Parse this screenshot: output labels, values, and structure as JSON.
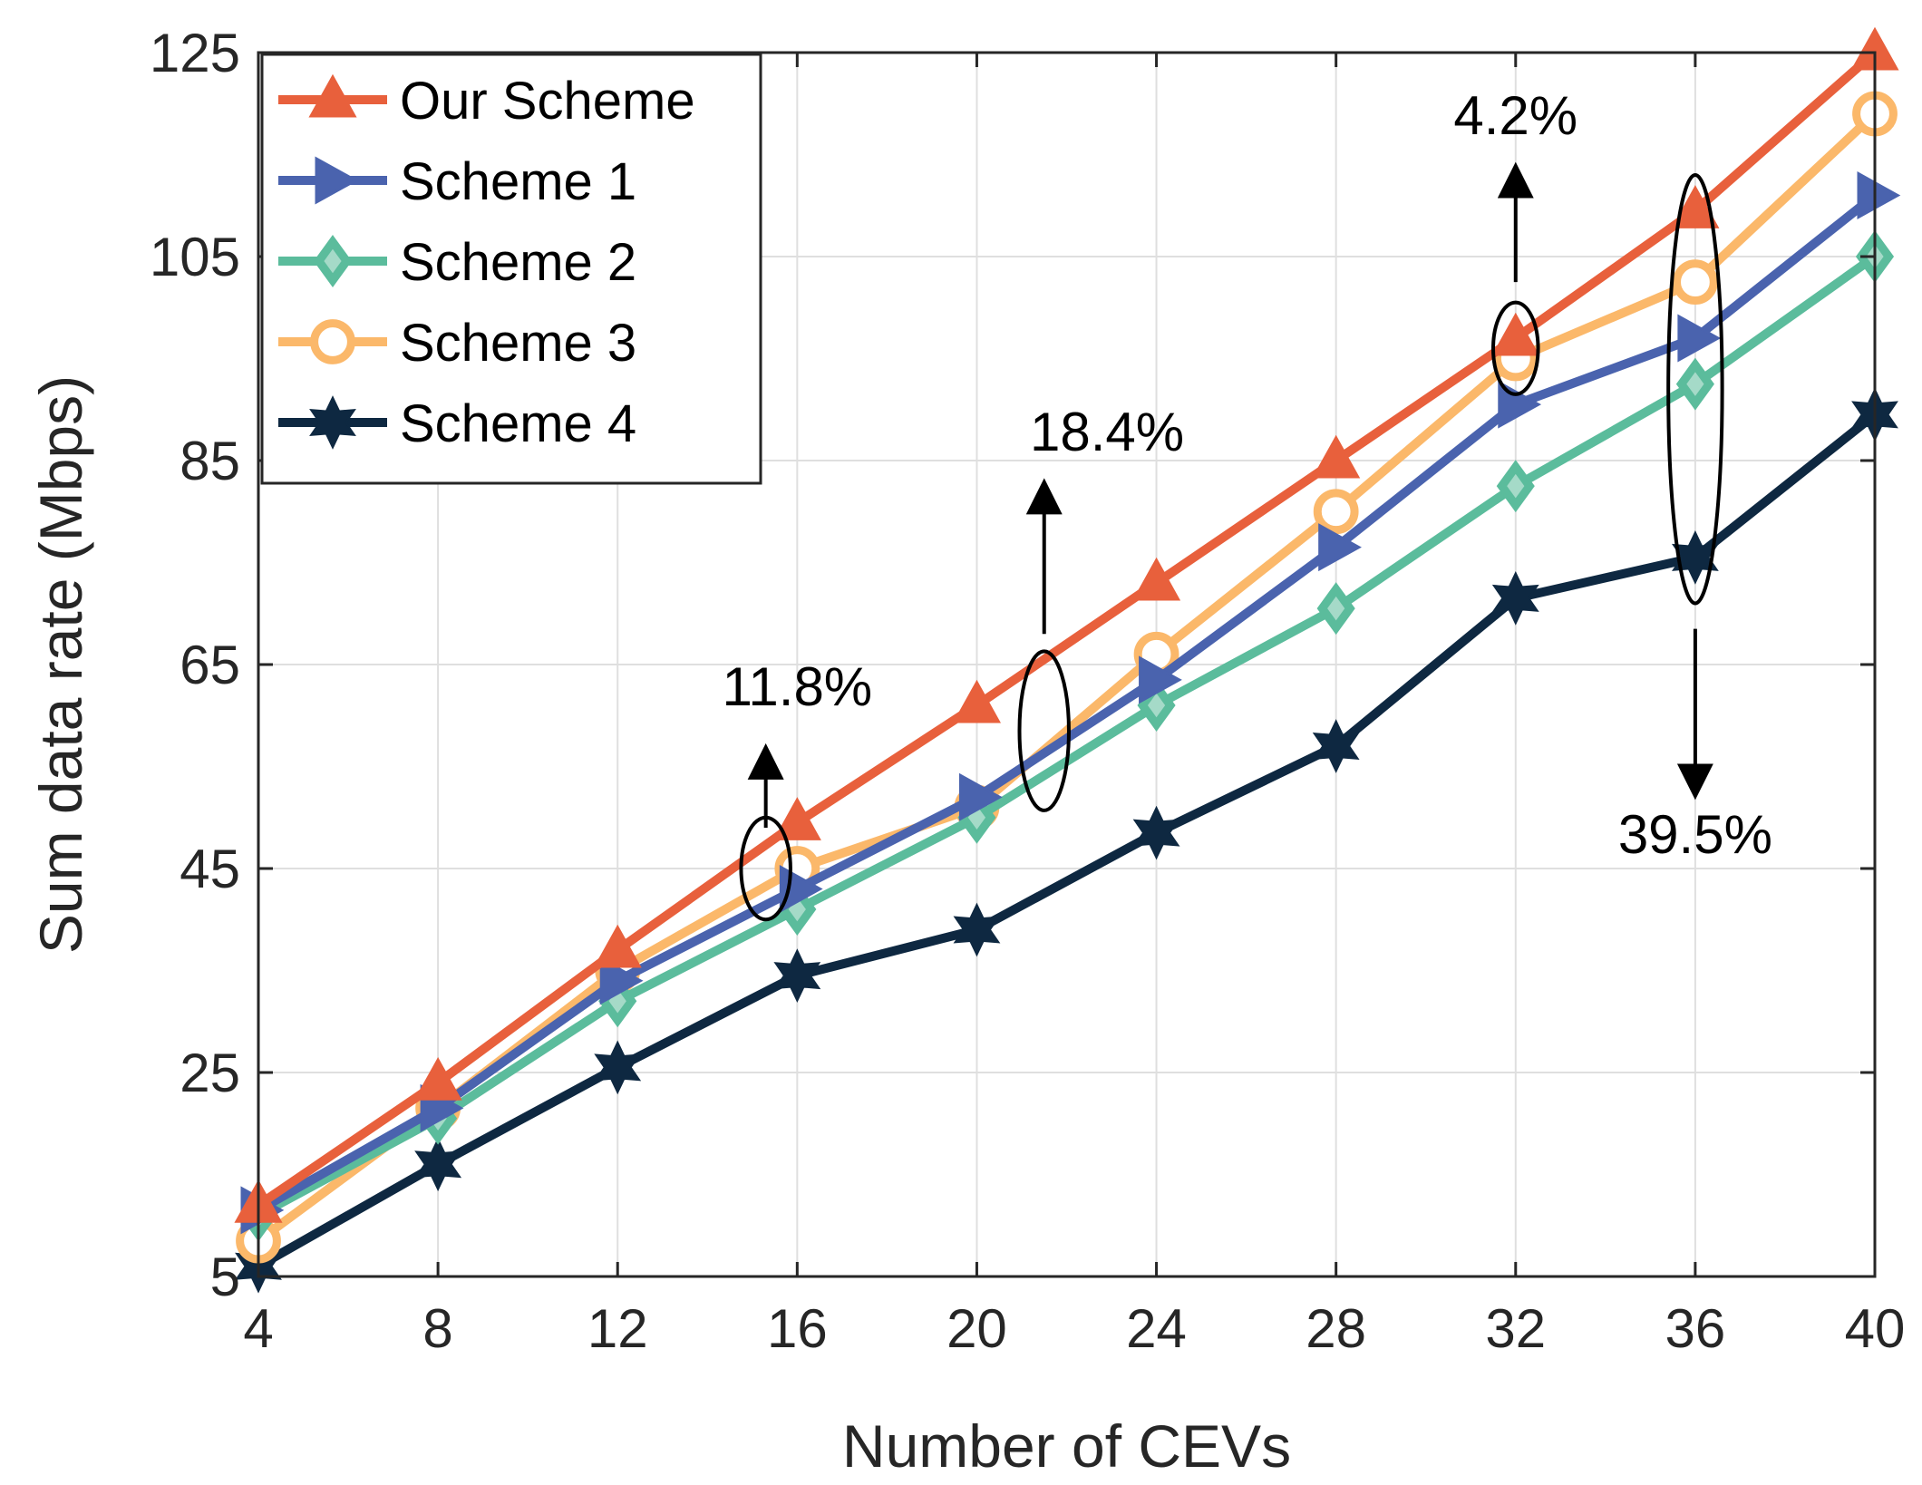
{
  "chart_data": {
    "type": "line",
    "title": "",
    "xlabel": "Number of CEVs",
    "ylabel": "Sum data rate (Mbps)",
    "x": [
      4,
      8,
      12,
      16,
      20,
      24,
      28,
      32,
      36,
      40
    ],
    "xlim": [
      4,
      40
    ],
    "ylim": [
      5,
      125
    ],
    "xticks": [
      4,
      8,
      12,
      16,
      20,
      24,
      28,
      32,
      36,
      40
    ],
    "yticks": [
      5,
      25,
      45,
      65,
      85,
      105,
      125
    ],
    "xtick_labels": [
      "4",
      "8",
      "12",
      "16",
      "20",
      "24",
      "28",
      "32",
      "36",
      "40"
    ],
    "ytick_labels": [
      "5",
      "25",
      "45",
      "65",
      "85",
      "105",
      "125"
    ],
    "grid": true,
    "legend_position": "top-left",
    "series": [
      {
        "name": "Our Scheme",
        "color": "#E8603C",
        "marker": "triangle-up",
        "values": [
          12.0,
          24.0,
          37.0,
          49.5,
          61.0,
          73.0,
          85.0,
          97.0,
          109.5,
          125.0
        ]
      },
      {
        "name": "Scheme 1",
        "color": "#4A63AE",
        "marker": "triangle-right",
        "values": [
          11.5,
          21.5,
          34.0,
          43.0,
          52.0,
          63.5,
          76.5,
          90.5,
          97.0,
          111.0
        ]
      },
      {
        "name": "Scheme 2",
        "color": "#5BBC9C",
        "marker": "diamond",
        "values": [
          11.0,
          20.5,
          32.0,
          41.0,
          50.0,
          61.0,
          70.5,
          82.5,
          92.5,
          105.0
        ]
      },
      {
        "name": "Scheme 3",
        "color": "#FBB86A",
        "marker": "circle",
        "values": [
          8.5,
          21.5,
          35.0,
          45.0,
          51.0,
          66.0,
          80.0,
          95.0,
          102.5,
          119.0
        ]
      },
      {
        "name": "Scheme 4",
        "color": "#0E2841",
        "marker": "hexagram",
        "values": [
          6.0,
          16.0,
          25.5,
          34.5,
          39.0,
          48.5,
          57.0,
          71.5,
          75.5,
          89.5
        ]
      }
    ],
    "annotations": [
      {
        "text": "11.8%",
        "x_center": 15.3,
        "y_center": 45.0,
        "direction": "up",
        "arrow_from": 49.0,
        "arrow_to": 55.5,
        "label_x": 16.0,
        "label_y": 61.0,
        "ellipse_rx": 0.55,
        "ellipse_ry": 5.0
      },
      {
        "text": "18.4%",
        "x_center": 21.5,
        "y_center": 58.5,
        "direction": "up",
        "arrow_from": 68.0,
        "arrow_to": 81.5,
        "label_x": 22.9,
        "label_y": 86.0,
        "ellipse_rx": 0.55,
        "ellipse_ry": 7.8
      },
      {
        "text": "4.2%",
        "x_center": 32.0,
        "y_center": 96.0,
        "direction": "up",
        "arrow_from": 102.5,
        "arrow_to": 112.5,
        "label_x": 32.0,
        "label_y": 117.0,
        "ellipse_rx": 0.5,
        "ellipse_ry": 4.5
      },
      {
        "text": "39.5%",
        "x_center": 36.0,
        "y_center": 92.0,
        "direction": "down",
        "arrow_from": 68.5,
        "arrow_to": 53.5,
        "label_x": 36.0,
        "label_y": 46.5,
        "ellipse_rx": 0.6,
        "ellipse_ry": 21.0
      }
    ]
  }
}
